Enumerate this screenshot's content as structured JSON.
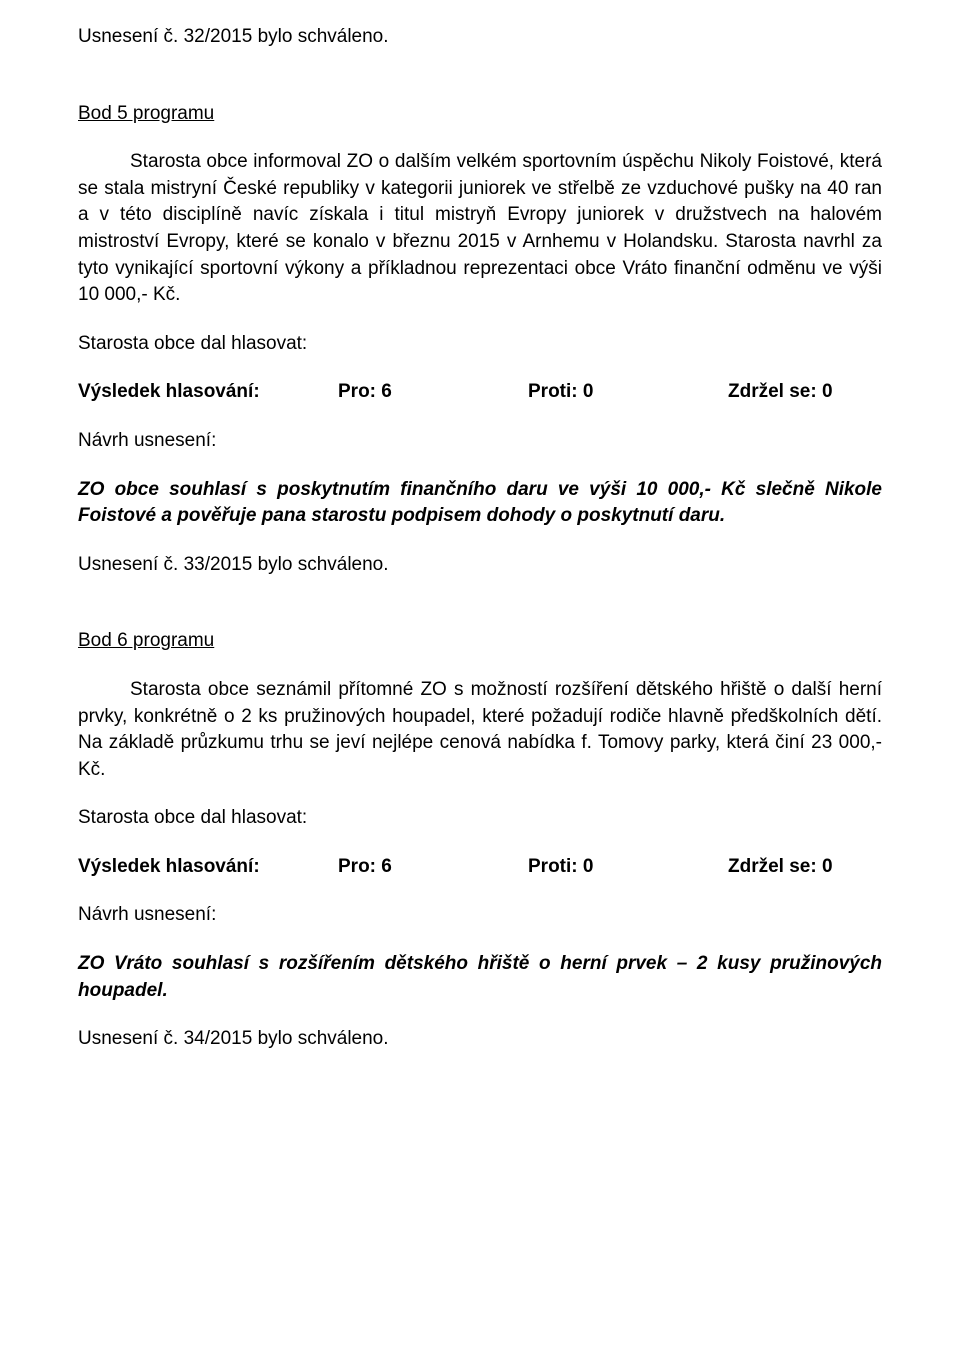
{
  "resolution32": "Usnesení č. 32/2015 bylo schváleno.",
  "section5": {
    "heading": "Bod 5 programu",
    "paragraph": "Starosta obce informoval ZO o dalším velkém sportovním úspěchu Nikoly Foistové, která se stala mistryní České republiky v kategorii juniorek ve střelbě ze vzduchové pušky na 40 ran a v této disciplíně navíc získala i titul mistryň Evropy juniorek v družstvech na halovém mistroství Evropy, které se konalo v březnu 2015 v Arnhemu  v Holandsku.  Starosta  navrhl  za  tyto  vynikající  sportovní  výkony  a příkladnou reprezentaci obce Vráto finanční odměnu ve výši 10 000,- Kč.",
    "hlasovat": "Starosta obce dal hlasovat:",
    "vote": {
      "label": "Výsledek hlasování:",
      "pro": "Pro: 6",
      "proti": "Proti: 0",
      "zdrzel": "Zdržel se: 0"
    },
    "navrhLabel": "Návrh usnesení:",
    "resolutionText": "ZO obce souhlasí s poskytnutím finančního daru ve výši 10 000,- Kč slečně Nikole Foistové a pověřuje pana starostu podpisem dohody o poskytnutí daru.",
    "approved": "Usnesení č. 33/2015 bylo schváleno."
  },
  "section6": {
    "heading": "Bod 6 programu",
    "paragraph": "Starosta obce seznámil přítomné ZO s možností rozšíření dětského hřiště o další  herní  prvky,  konkrétně  o  2  ks  pružinových  houpadel,  které  požadují  rodiče hlavně předškolních dětí. Na základě průzkumu trhu se jeví nejlépe cenová nabídka f. Tomovy parky, která činí 23 000,- Kč.",
    "hlasovat": "Starosta obce dal hlasovat:",
    "vote": {
      "label": "Výsledek hlasování:",
      "pro": "Pro: 6",
      "proti": "Proti: 0",
      "zdrzel": "Zdržel se: 0"
    },
    "navrhLabel": "Návrh usnesení:",
    "resolutionText": "ZO  Vráto  souhlasí  s  rozšířením  dětského  hřiště  o  herní  prvek  –  2  kusy pružinových houpadel.",
    "approved": "Usnesení č. 34/2015 bylo schváleno."
  }
}
